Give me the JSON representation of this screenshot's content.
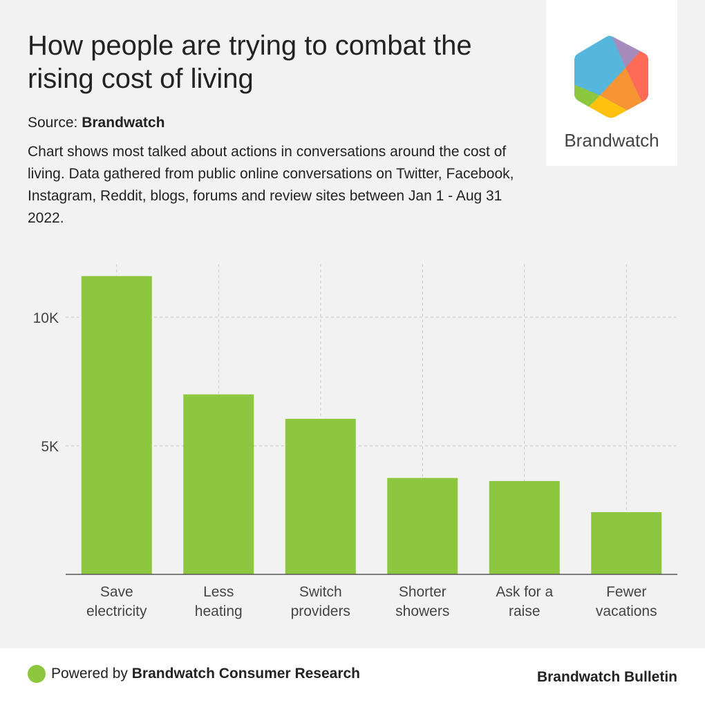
{
  "header": {
    "title": "How people are trying to combat the rising cost of living",
    "source_label": "Source:",
    "source_name": "Brandwatch",
    "description": "Chart shows most talked about actions in conversations around the cost of living. Data gathered from public online conversations on Twitter, Facebook, Instagram, Reddit, blogs, forums and review sites between Jan 1 - Aug 31 2022."
  },
  "logo": {
    "text": "Brandwatch",
    "colors": [
      "#56b6dc",
      "#a88bbd",
      "#ff6b57",
      "#f79433",
      "#ffc20e",
      "#8dc63f"
    ]
  },
  "footer": {
    "powered_prefix": "Powered by ",
    "powered_name": "Brandwatch Consumer Research",
    "bulletin": "Brandwatch Bulletin"
  },
  "chart_data": {
    "type": "bar",
    "title": "",
    "xlabel": "",
    "ylabel": "",
    "categories": [
      [
        "Save",
        "electricity"
      ],
      [
        "Less",
        "heating"
      ],
      [
        "Switch",
        "providers"
      ],
      [
        "Shorter",
        "showers"
      ],
      [
        "Ask for a",
        "raise"
      ],
      [
        "Fewer",
        "vacations"
      ]
    ],
    "values": [
      11600,
      7000,
      6050,
      3750,
      3630,
      2420
    ],
    "ylim": [
      0,
      12000
    ],
    "yticks": [
      {
        "value": 5000,
        "label": "5K"
      },
      {
        "value": 10000,
        "label": "10K"
      }
    ],
    "grid": true,
    "bar_color": "#8dc63f"
  }
}
